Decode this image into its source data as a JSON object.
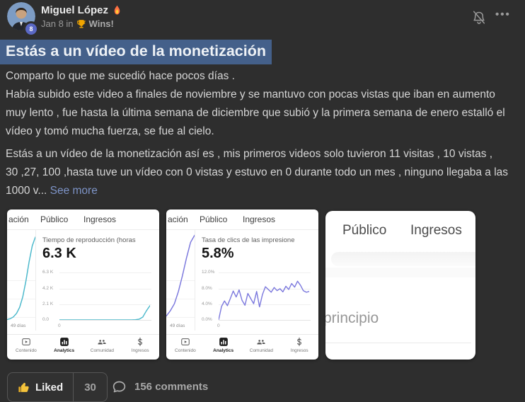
{
  "header": {
    "author": "Miguel López",
    "level_badge": "8",
    "posted": "Jan 8 in",
    "space": "Wins!"
  },
  "post": {
    "title": "Estás a un vídeo de la monetización",
    "p1_lines": [
      "Comparto lo que me sucedió hace pocos días .",
      "Había subido este video a finales de noviembre y se mantuvo con pocas vistas que iban en aumento",
      "muy lento , fue hasta la última semana de diciembre que subió y la primera semana de enero estalló el",
      "vídeo y tomó mucha fuerza, se fue al cielo."
    ],
    "p2_lines": [
      "Estás a un vídeo de la monetización así es , mis primeros videos solo tuvieron 11 visitas , 10 vistas ,",
      "30 ,27, 100 ,hasta tuve un vídeo con 0 vistas y estuvo en 0 durante todo un mes , ninguno llegaba a las"
    ],
    "p2_last": "1000 v...",
    "see_more": "See more"
  },
  "attachments": [
    {
      "tabs": [
        "ación",
        "Público",
        "Ingresos"
      ],
      "nav": [
        "Contenido",
        "Analytics",
        "Comunidad",
        "Ingresos"
      ]
    },
    {
      "tabs": [
        "ación",
        "Público",
        "Ingresos"
      ],
      "nav": [
        "Contenido",
        "Analytics",
        "Comunidad",
        "Ingresos"
      ]
    },
    {
      "tabs": [
        "Público",
        "Ingresos"
      ],
      "partial_text": "principio"
    }
  ],
  "chart_data": [
    {
      "type": "line",
      "title": "Tiempo de reproducción (horas",
      "headline_value": "6.3 K",
      "y_ticks": [
        "6.3 K",
        "4.2 K",
        "2.1 K",
        "0.0"
      ],
      "x_tick": "0",
      "days_label": "49 días",
      "ylim": [
        0,
        6300
      ],
      "color": "#4ab8cb",
      "values": [
        0,
        0,
        0,
        0,
        0,
        0,
        0,
        0,
        0,
        0,
        0,
        0,
        0,
        0,
        0,
        0,
        0,
        0,
        0,
        0,
        10,
        25,
        90,
        380,
        1200,
        1900
      ],
      "left_values": [
        2,
        3,
        5,
        9,
        16,
        28,
        46,
        68,
        86,
        96
      ],
      "left_values_lim": [
        0,
        100
      ]
    },
    {
      "type": "line",
      "title": "Tasa de clics de las impresione",
      "headline_value": "5.8%",
      "y_ticks": [
        "12.0%",
        "8.0%",
        "4.0%",
        "0.0%"
      ],
      "x_tick": "0",
      "days_label": "49 días",
      "ylim": [
        0,
        12
      ],
      "color": "#7b78dd",
      "values": [
        0,
        3.4,
        4.8,
        3.6,
        5.4,
        7.3,
        5.8,
        7.6,
        5.0,
        3.7,
        6.7,
        5.4,
        4.1,
        7.2,
        3.3,
        6.4,
        8.4,
        7.7,
        7.0,
        8.2,
        7.4,
        7.9,
        7.1,
        8.5,
        7.7,
        9.2,
        8.3,
        9.8,
        8.8,
        7.4,
        7.0,
        7.2
      ],
      "left_values": [
        6,
        12,
        20,
        34,
        52,
        72,
        90,
        98
      ],
      "left_values_lim": [
        0,
        100
      ]
    }
  ],
  "footer": {
    "liked": "Liked",
    "like_count": "30",
    "comments": "156 comments"
  }
}
